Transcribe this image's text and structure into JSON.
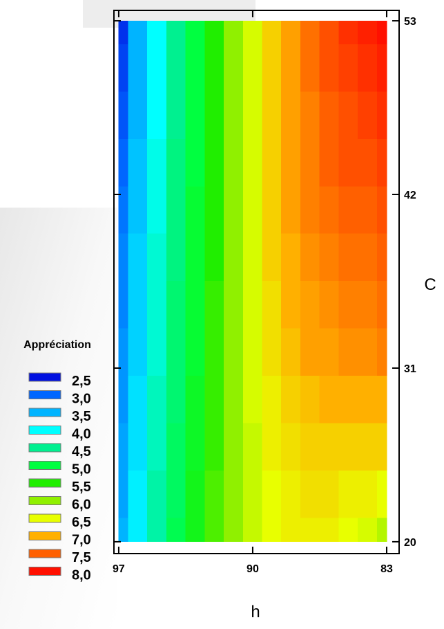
{
  "chart_data": {
    "type": "heatmap",
    "x_label": "h",
    "y_label": "C",
    "x": [
      97,
      96,
      95,
      94,
      93,
      92,
      91,
      90,
      89,
      88,
      87,
      86,
      85,
      84,
      83
    ],
    "y": [
      53,
      50,
      47,
      44,
      41,
      38,
      35,
      32,
      29,
      26,
      23,
      20
    ],
    "z": [
      [
        2.7,
        3.5,
        4.0,
        4.5,
        5.0,
        5.5,
        6.0,
        6.4,
        6.8,
        7.1,
        7.4,
        7.6,
        7.8,
        7.9,
        8.0
      ],
      [
        2.8,
        3.5,
        4.0,
        4.5,
        5.0,
        5.5,
        6.0,
        6.4,
        6.8,
        7.1,
        7.4,
        7.6,
        7.7,
        7.8,
        7.9
      ],
      [
        2.9,
        3.5,
        4.0,
        4.5,
        5.0,
        5.5,
        6.0,
        6.4,
        6.8,
        7.1,
        7.3,
        7.5,
        7.6,
        7.7,
        7.8
      ],
      [
        3.0,
        3.6,
        4.1,
        4.6,
        5.0,
        5.5,
        6.0,
        6.4,
        6.8,
        7.1,
        7.3,
        7.5,
        7.6,
        7.6,
        7.7
      ],
      [
        3.1,
        3.6,
        4.1,
        4.6,
        5.1,
        5.5,
        6.0,
        6.4,
        6.8,
        7.1,
        7.3,
        7.4,
        7.5,
        7.5,
        7.6
      ],
      [
        3.2,
        3.7,
        4.2,
        4.6,
        5.1,
        5.5,
        6.0,
        6.4,
        6.8,
        7.0,
        7.2,
        7.3,
        7.4,
        7.4,
        7.5
      ],
      [
        3.2,
        3.7,
        4.2,
        4.7,
        5.1,
        5.6,
        6.0,
        6.4,
        6.7,
        7.0,
        7.1,
        7.2,
        7.3,
        7.3,
        7.4
      ],
      [
        3.3,
        3.7,
        4.2,
        4.7,
        5.1,
        5.6,
        6.0,
        6.4,
        6.7,
        6.9,
        7.1,
        7.1,
        7.2,
        7.2,
        7.3
      ],
      [
        3.3,
        3.8,
        4.3,
        4.7,
        5.2,
        5.6,
        6.0,
        6.4,
        6.6,
        6.8,
        6.9,
        7.0,
        7.0,
        7.0,
        7.0
      ],
      [
        3.4,
        3.8,
        4.3,
        4.8,
        5.2,
        5.6,
        6.0,
        6.3,
        6.6,
        6.7,
        6.8,
        6.8,
        6.8,
        6.8,
        6.8
      ],
      [
        3.4,
        3.9,
        4.4,
        4.8,
        5.3,
        5.7,
        6.0,
        6.3,
        6.5,
        6.6,
        6.7,
        6.7,
        6.6,
        6.6,
        6.5
      ],
      [
        3.5,
        3.9,
        4.4,
        4.9,
        5.3,
        5.7,
        6.0,
        6.3,
        6.5,
        6.6,
        6.6,
        6.6,
        6.5,
        6.4,
        6.2
      ]
    ],
    "xlim": [
      97.25,
      82.35
    ],
    "ylim": [
      19.25,
      53.66
    ],
    "xticks": [
      97,
      90,
      83
    ],
    "yticks": [
      20,
      31,
      42,
      53
    ],
    "legend": {
      "title": "Appréciation",
      "levels": [
        {
          "value": 2.5,
          "label": "2,5"
        },
        {
          "value": 3.0,
          "label": "3,0"
        },
        {
          "value": 3.5,
          "label": "3,5"
        },
        {
          "value": 4.0,
          "label": "4,0"
        },
        {
          "value": 4.5,
          "label": "4,5"
        },
        {
          "value": 5.0,
          "label": "5,0"
        },
        {
          "value": 5.5,
          "label": "5,5"
        },
        {
          "value": 6.0,
          "label": "6,0"
        },
        {
          "value": 6.5,
          "label": "6,5"
        },
        {
          "value": 7.0,
          "label": "7,0"
        },
        {
          "value": 7.5,
          "label": "7,5"
        },
        {
          "value": 8.0,
          "label": "8,0"
        }
      ],
      "colors": [
        "#0010e0",
        "#0066ff",
        "#00b4ff",
        "#00ffff",
        "#00f090",
        "#00ff40",
        "#20ee00",
        "#90f000",
        "#e8ff00",
        "#ffb000",
        "#ff6000",
        "#ff1000"
      ]
    }
  }
}
